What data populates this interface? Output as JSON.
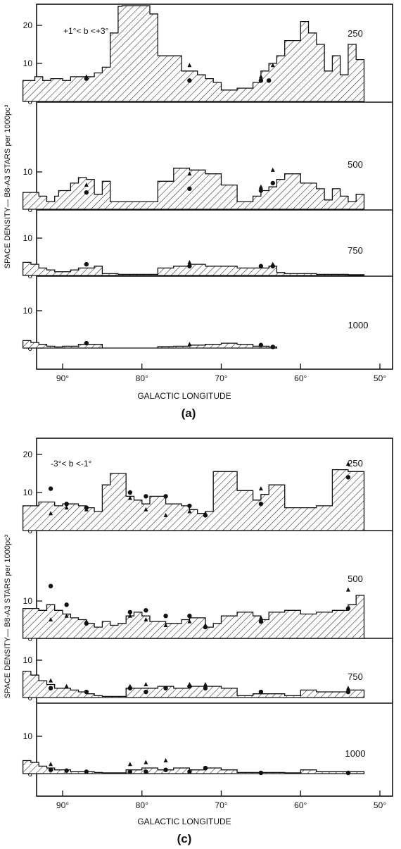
{
  "figure": {
    "ylabel": "SPACE DENSITY— B8-A3 STARS per 1000pc³",
    "xlabel": "GALACTIC LONGITUDE",
    "x_ticks": [
      90,
      80,
      70,
      60,
      50
    ],
    "x_tick_labels": [
      "90°",
      "80°",
      "70°",
      "60°",
      "50°"
    ],
    "y_ticks_top": [
      0,
      10,
      20
    ],
    "y_ticks": [
      0,
      10
    ],
    "y_tick_labels": {
      "0": "0",
      "10": "10",
      "20": "20"
    },
    "colors": {
      "ink": "#111111",
      "hatch": "#222222",
      "background": "#ffffff"
    }
  },
  "panels": [
    {
      "label": "(a)",
      "condition": "+1°< b <+3°",
      "row_labels": [
        "250",
        "500",
        "750",
        "1000"
      ]
    },
    {
      "label": "(c)",
      "condition": "-3°< b <-1°",
      "row_labels": [
        "250",
        "500",
        "750",
        "1000"
      ]
    }
  ],
  "chart_data": [
    {
      "type": "area",
      "step": true,
      "panel": "(a)",
      "title": "+1°< b <+3°",
      "xlabel": "GALACTIC LONGITUDE",
      "ylabel": "SPACE DENSITY— B8-A3 STARS per 1000pc³",
      "x_reversed": true,
      "xlim": [
        95,
        48
      ],
      "sub_ylim": [
        [
          0,
          26
        ],
        [
          0,
          26
        ],
        [
          0,
          14
        ],
        [
          0,
          14
        ]
      ],
      "grid": false,
      "series": [
        {
          "name": "250",
          "edges": [
            95,
            93.5,
            92.5,
            91.5,
            90,
            89,
            87,
            86,
            85,
            84,
            83,
            82.5,
            80,
            79,
            78,
            75,
            73,
            72,
            71,
            70,
            68,
            66,
            65,
            64,
            63,
            62,
            60,
            59,
            58,
            57,
            56,
            55,
            54,
            53,
            52
          ],
          "values": [
            5.5,
            6.5,
            5.5,
            6,
            5.5,
            6.5,
            6.5,
            7.5,
            9,
            18,
            25,
            26,
            26,
            23,
            12,
            8,
            7,
            6,
            5,
            3,
            3.5,
            5,
            8,
            10,
            12,
            16,
            21,
            18,
            15,
            8,
            12,
            7,
            15,
            11
          ]
        },
        {
          "name": "500",
          "edges": [
            95,
            93,
            92,
            91,
            90.5,
            89,
            88,
            87,
            86,
            85,
            84,
            83,
            82,
            78,
            76,
            74,
            72,
            70,
            68,
            66,
            65,
            64,
            63,
            62,
            60,
            58,
            57,
            56,
            55,
            54,
            53,
            52
          ],
          "values": [
            4.5,
            3.5,
            2,
            3.5,
            5,
            7,
            8.5,
            8,
            4,
            7.5,
            2,
            2,
            2,
            7.5,
            11,
            10.5,
            9.5,
            6.5,
            2,
            3.5,
            5,
            6,
            8,
            9.5,
            7,
            5.5,
            2.5,
            5.5,
            3.5,
            2,
            4
          ]
        },
        {
          "name": "750",
          "edges": [
            95,
            94,
            93,
            92,
            91,
            90,
            89,
            88,
            87,
            86,
            85,
            83,
            78,
            76,
            74,
            72,
            70,
            68,
            66,
            64,
            63,
            62,
            60,
            58,
            56,
            54,
            52
          ],
          "values": [
            3.5,
            3,
            2,
            1.5,
            1,
            1,
            1.5,
            2,
            2,
            2.5,
            0.5,
            0.3,
            2,
            2.5,
            3,
            2.5,
            2.5,
            2,
            2,
            2.5,
            0.8,
            0.5,
            0.5,
            0.3,
            0.3,
            0.2
          ]
        },
        {
          "name": "1000",
          "edges": [
            95,
            94,
            93,
            92,
            91,
            90,
            89,
            88,
            87,
            86,
            85,
            78,
            76,
            74,
            72,
            70,
            68,
            66,
            64,
            63
          ],
          "values": [
            2,
            1.5,
            1,
            0.5,
            0.3,
            0.5,
            0.5,
            1,
            1,
            1,
            0,
            0.4,
            0.5,
            0.8,
            1,
            1.3,
            1,
            0.5,
            0.3
          ]
        }
      ],
      "markers": {
        "dots": [
          [
            87,
            0,
            6
          ],
          [
            74,
            0,
            5.5
          ],
          [
            65,
            0,
            5.5
          ],
          [
            64,
            0,
            5.5
          ],
          [
            87,
            1,
            4.5
          ],
          [
            74,
            1,
            5.5
          ],
          [
            65,
            1,
            5
          ],
          [
            63.5,
            1,
            7
          ],
          [
            87,
            2,
            3
          ],
          [
            74,
            2,
            2.5
          ],
          [
            65,
            2,
            2.5
          ],
          [
            63.5,
            2,
            2.5
          ],
          [
            87,
            3,
            1.3
          ],
          [
            65,
            3,
            0.8
          ],
          [
            63.5,
            3,
            0.3
          ]
        ],
        "triangles": [
          [
            87,
            0,
            6.5
          ],
          [
            74,
            0,
            9.5
          ],
          [
            65,
            0,
            6.5
          ],
          [
            63.5,
            0,
            9.5
          ],
          [
            87,
            1,
            6.5
          ],
          [
            74,
            1,
            9.5
          ],
          [
            65,
            1,
            6
          ],
          [
            63.5,
            1,
            10.5
          ],
          [
            74,
            2,
            3.5
          ],
          [
            63.5,
            2,
            3
          ],
          [
            74,
            3,
            1
          ]
        ]
      }
    },
    {
      "type": "area",
      "step": true,
      "panel": "(c)",
      "title": "-3°< b <-1°",
      "xlabel": "GALACTIC LONGITUDE",
      "ylabel": "SPACE DENSITY— B8-A3 STARS per 1000pc³",
      "x_reversed": true,
      "xlim": [
        95,
        48
      ],
      "sub_ylim": [
        [
          0,
          26
        ],
        [
          0,
          26
        ],
        [
          0,
          14
        ],
        [
          0,
          14
        ]
      ],
      "grid": false,
      "series": [
        {
          "name": "250",
          "edges": [
            95,
            93,
            91,
            90,
            88,
            87,
            86,
            85,
            84,
            82,
            81,
            80,
            79,
            77,
            75,
            74,
            73,
            72,
            71,
            68,
            66,
            65,
            64,
            62,
            60,
            58,
            56,
            54,
            52
          ],
          "values": [
            6.5,
            7.5,
            6.5,
            7,
            6.5,
            6,
            5,
            12,
            15,
            9,
            8,
            7,
            9,
            7,
            6.5,
            5.5,
            4.5,
            5,
            15.5,
            10.5,
            8,
            9.5,
            12,
            6,
            6,
            6.5,
            16,
            15.5
          ]
        },
        {
          "name": "500",
          "edges": [
            95,
            93,
            92,
            91,
            90,
            89,
            88,
            87,
            86,
            85,
            84,
            83,
            82,
            81,
            80,
            79,
            77,
            75,
            74,
            72,
            71,
            70,
            68,
            66,
            65,
            64,
            62,
            60,
            58,
            56,
            54,
            53,
            52
          ],
          "values": [
            8,
            7.5,
            9,
            7.5,
            6.5,
            5.5,
            5,
            4,
            3,
            4.5,
            3.5,
            4,
            6,
            7,
            6,
            4.5,
            4,
            5,
            5.5,
            3,
            4,
            6,
            7,
            6,
            5,
            7,
            7.5,
            6.5,
            7,
            7.5,
            9,
            11.5
          ]
        },
        {
          "name": "750",
          "edges": [
            95,
            94,
            93,
            92,
            91,
            90,
            89,
            88,
            87,
            86,
            85,
            82,
            80,
            78,
            76,
            74,
            72,
            70,
            68,
            66,
            65,
            62,
            60,
            58,
            56,
            54,
            52
          ],
          "values": [
            7,
            6,
            4.5,
            3.5,
            2.5,
            2.5,
            2,
            1.5,
            1,
            0.5,
            0.3,
            2.5,
            2.5,
            3,
            2.5,
            3,
            3,
            2.5,
            0.5,
            1,
            1,
            0.5,
            2,
            1.5,
            1.5,
            2
          ]
        },
        {
          "name": "1000",
          "edges": [
            95,
            94,
            93,
            92,
            91,
            90,
            89,
            88,
            87,
            86,
            85,
            82,
            80,
            78,
            76,
            74,
            72,
            70,
            68,
            66,
            65,
            62,
            60,
            58,
            56,
            54,
            52
          ],
          "values": [
            3.5,
            3,
            2,
            1.5,
            1,
            1,
            0.5,
            0.5,
            0.5,
            0.3,
            0.2,
            1,
            1.5,
            1,
            1.5,
            1,
            1.5,
            1,
            0.3,
            0.3,
            0.3,
            0.2,
            1,
            0.5,
            0.5,
            0.5
          ]
        }
      ],
      "markers": {
        "dots": [
          [
            91.5,
            0,
            11
          ],
          [
            89.5,
            0,
            7
          ],
          [
            87,
            0,
            6
          ],
          [
            81.5,
            0,
            10
          ],
          [
            79.5,
            0,
            9
          ],
          [
            77,
            0,
            9
          ],
          [
            74,
            0,
            6.5
          ],
          [
            72,
            0,
            4
          ],
          [
            65,
            0,
            7
          ],
          [
            54,
            0,
            14
          ],
          [
            91.5,
            1,
            14
          ],
          [
            89.5,
            1,
            9
          ],
          [
            87,
            1,
            4
          ],
          [
            81.5,
            1,
            7
          ],
          [
            79.5,
            1,
            7.5
          ],
          [
            77,
            1,
            6
          ],
          [
            74,
            1,
            6
          ],
          [
            72,
            1,
            3
          ],
          [
            65,
            1,
            4.5
          ],
          [
            54,
            1,
            8
          ],
          [
            91.5,
            2,
            2.5
          ],
          [
            87,
            2,
            1.5
          ],
          [
            81.5,
            2,
            2.5
          ],
          [
            79.5,
            2,
            1.5
          ],
          [
            77,
            2,
            2.5
          ],
          [
            74,
            2,
            3
          ],
          [
            72,
            2,
            2.5
          ],
          [
            65,
            2,
            1.5
          ],
          [
            54,
            2,
            1.5
          ],
          [
            91.5,
            3,
            1
          ],
          [
            89.5,
            3,
            0.8
          ],
          [
            87,
            3,
            0.5
          ],
          [
            81.5,
            3,
            0.5
          ],
          [
            79.5,
            3,
            0.5
          ],
          [
            77,
            3,
            1
          ],
          [
            74,
            3,
            0.5
          ],
          [
            72,
            3,
            1.5
          ],
          [
            65,
            3,
            0.2
          ],
          [
            54,
            3,
            0.2
          ]
        ],
        "triangles": [
          [
            91.5,
            0,
            4.5
          ],
          [
            89.5,
            0,
            6
          ],
          [
            87,
            0,
            5.5
          ],
          [
            81.5,
            0,
            8.5
          ],
          [
            79.5,
            0,
            5.5
          ],
          [
            77,
            0,
            4
          ],
          [
            74,
            0,
            5
          ],
          [
            72,
            0,
            4.5
          ],
          [
            65,
            0,
            11
          ],
          [
            54,
            0,
            17.5
          ],
          [
            91.5,
            1,
            5
          ],
          [
            89.5,
            1,
            6
          ],
          [
            87,
            1,
            4.5
          ],
          [
            81.5,
            1,
            6
          ],
          [
            79.5,
            1,
            5
          ],
          [
            77,
            1,
            3.5
          ],
          [
            74,
            1,
            4.5
          ],
          [
            72,
            1,
            3.5
          ],
          [
            65,
            1,
            5.5
          ],
          [
            54,
            1,
            13
          ],
          [
            91.5,
            2,
            4.5
          ],
          [
            89.5,
            2,
            3
          ],
          [
            81.5,
            2,
            3
          ],
          [
            79.5,
            2,
            3.5
          ],
          [
            74,
            2,
            3.5
          ],
          [
            72,
            2,
            3.5
          ],
          [
            54,
            2,
            2.5
          ],
          [
            91.5,
            3,
            2.5
          ],
          [
            81.5,
            3,
            2.5
          ],
          [
            79.5,
            3,
            3
          ],
          [
            77,
            3,
            3.5
          ]
        ]
      }
    }
  ]
}
